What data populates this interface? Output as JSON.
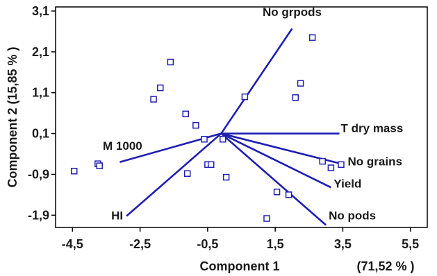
{
  "chart_data": {
    "type": "scatter",
    "xlabel": "Component 1",
    "xlabel_variance": "(71,52 % )",
    "ylabel": "Component 2  (15,85 % )",
    "xlim": [
      -5,
      6
    ],
    "ylim": [
      -2.2,
      3.2
    ],
    "x_ticks": [
      {
        "value": -4.5,
        "label": "-4,5"
      },
      {
        "value": -2.5,
        "label": "-2,5"
      },
      {
        "value": -0.5,
        "label": "-0,5"
      },
      {
        "value": 1.5,
        "label": "1,5"
      },
      {
        "value": 3.5,
        "label": "3,5"
      },
      {
        "value": 5.5,
        "label": "5,5"
      }
    ],
    "y_ticks": [
      {
        "value": 3.1,
        "label": "3,1"
      },
      {
        "value": 2.1,
        "label": "2,1"
      },
      {
        "value": 1.1,
        "label": "1,1"
      },
      {
        "value": 0.1,
        "label": "0,1"
      },
      {
        "value": -0.9,
        "label": "-0,9"
      },
      {
        "value": -1.9,
        "label": "-1,9"
      }
    ],
    "grid": false,
    "colors": {
      "series": "#1f1fb4",
      "axis": "#000000"
    },
    "points": [
      {
        "x": -4.45,
        "y": -0.82
      },
      {
        "x": -3.75,
        "y": -0.64
      },
      {
        "x": -3.7,
        "y": -0.69
      },
      {
        "x": -2.1,
        "y": 0.94
      },
      {
        "x": -1.9,
        "y": 1.22
      },
      {
        "x": -1.6,
        "y": 1.85
      },
      {
        "x": -1.15,
        "y": 0.58
      },
      {
        "x": -1.1,
        "y": -0.88
      },
      {
        "x": -0.85,
        "y": 0.3
      },
      {
        "x": -0.6,
        "y": -0.04
      },
      {
        "x": -0.5,
        "y": -0.66
      },
      {
        "x": -0.4,
        "y": -0.66
      },
      {
        "x": -0.05,
        "y": -0.04
      },
      {
        "x": 0.05,
        "y": -0.97
      },
      {
        "x": 0.6,
        "y": 1.0
      },
      {
        "x": 1.25,
        "y": -1.98
      },
      {
        "x": 1.55,
        "y": -1.33
      },
      {
        "x": 1.9,
        "y": -1.4
      },
      {
        "x": 2.1,
        "y": 0.98
      },
      {
        "x": 2.25,
        "y": 1.33
      },
      {
        "x": 2.6,
        "y": 2.45
      },
      {
        "x": 2.9,
        "y": -0.58
      },
      {
        "x": 3.15,
        "y": -0.74
      },
      {
        "x": 3.45,
        "y": -0.66
      }
    ],
    "vectors": [
      {
        "label": "No grpods",
        "x": 2.0,
        "y": 2.67
      },
      {
        "label": "T dry mass",
        "x": 3.4,
        "y": 0.1
      },
      {
        "label": "No grains",
        "x": 3.4,
        "y": -0.63
      },
      {
        "label": "Yield",
        "x": 3.15,
        "y": -1.22
      },
      {
        "label": "No pods",
        "x": 3.0,
        "y": -2.14
      },
      {
        "label": "M 1000",
        "x": -3.1,
        "y": -0.6
      },
      {
        "label": "HI",
        "x": -2.9,
        "y": -1.92
      }
    ],
    "vector_origin": {
      "x": -0.1,
      "y": 0.1
    }
  }
}
